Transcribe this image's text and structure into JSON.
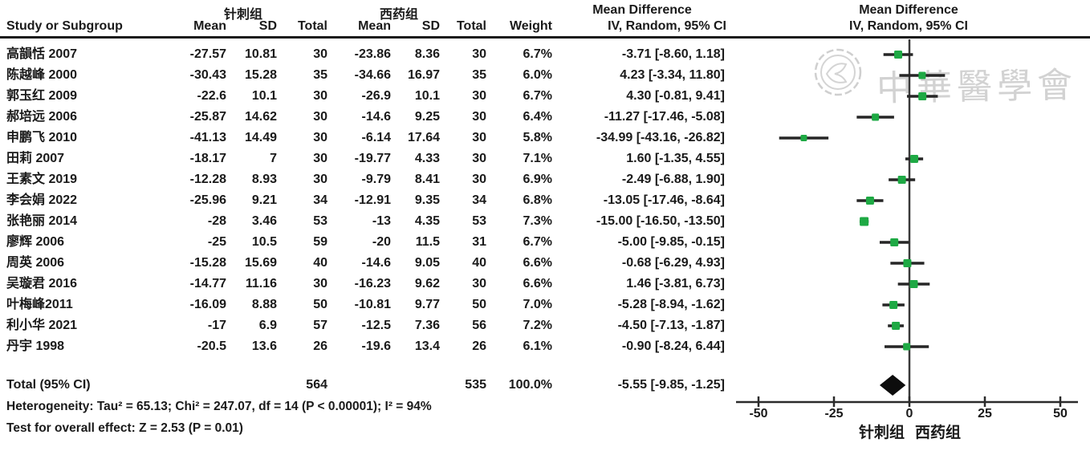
{
  "chart_data": {
    "type": "forest_plot",
    "effect_measure": "Mean Difference",
    "method": "IV, Random, 95% CI",
    "group1_label": "针刺组",
    "group2_label": "西药组",
    "columns": {
      "study": "Study or Subgroup",
      "mean": "Mean",
      "sd": "SD",
      "total": "Total",
      "weight": "Weight",
      "ci": "IV, Random, 95% CI"
    },
    "studies": [
      {
        "name": "高韻恬 2007",
        "mean1": "-27.57",
        "sd1": "10.81",
        "n1": "30",
        "mean2": "-23.86",
        "sd2": "8.36",
        "n2": "30",
        "weight": "6.7%",
        "md": -3.71,
        "lo": -8.6,
        "hi": 1.18,
        "ci_text": "-3.71 [-8.60, 1.18]"
      },
      {
        "name": "陈越峰 2000",
        "mean1": "-30.43",
        "sd1": "15.28",
        "n1": "35",
        "mean2": "-34.66",
        "sd2": "16.97",
        "n2": "35",
        "weight": "6.0%",
        "md": 4.23,
        "lo": -3.34,
        "hi": 11.8,
        "ci_text": "4.23 [-3.34, 11.80]"
      },
      {
        "name": "郭玉红 2009",
        "mean1": "-22.6",
        "sd1": "10.1",
        "n1": "30",
        "mean2": "-26.9",
        "sd2": "10.1",
        "n2": "30",
        "weight": "6.7%",
        "md": 4.3,
        "lo": -0.81,
        "hi": 9.41,
        "ci_text": "4.30 [-0.81, 9.41]"
      },
      {
        "name": "郝培远 2006",
        "mean1": "-25.87",
        "sd1": "14.62",
        "n1": "30",
        "mean2": "-14.6",
        "sd2": "9.25",
        "n2": "30",
        "weight": "6.4%",
        "md": -11.27,
        "lo": -17.46,
        "hi": -5.08,
        "ci_text": "-11.27 [-17.46, -5.08]"
      },
      {
        "name": "申鹏飞 2010",
        "mean1": "-41.13",
        "sd1": "14.49",
        "n1": "30",
        "mean2": "-6.14",
        "sd2": "17.64",
        "n2": "30",
        "weight": "5.8%",
        "md": -34.99,
        "lo": -43.16,
        "hi": -26.82,
        "ci_text": "-34.99 [-43.16, -26.82]"
      },
      {
        "name": "田莉 2007",
        "mean1": "-18.17",
        "sd1": "7",
        "n1": "30",
        "mean2": "-19.77",
        "sd2": "4.33",
        "n2": "30",
        "weight": "7.1%",
        "md": 1.6,
        "lo": -1.35,
        "hi": 4.55,
        "ci_text": "1.60 [-1.35, 4.55]"
      },
      {
        "name": "王素文 2019",
        "mean1": "-12.28",
        "sd1": "8.93",
        "n1": "30",
        "mean2": "-9.79",
        "sd2": "8.41",
        "n2": "30",
        "weight": "6.9%",
        "md": -2.49,
        "lo": -6.88,
        "hi": 1.9,
        "ci_text": "-2.49 [-6.88, 1.90]"
      },
      {
        "name": "李会娟 2022",
        "mean1": "-25.96",
        "sd1": "9.21",
        "n1": "34",
        "mean2": "-12.91",
        "sd2": "9.35",
        "n2": "34",
        "weight": "6.8%",
        "md": -13.05,
        "lo": -17.46,
        "hi": -8.64,
        "ci_text": "-13.05 [-17.46, -8.64]"
      },
      {
        "name": "张艳丽 2014",
        "mean1": "-28",
        "sd1": "3.46",
        "n1": "53",
        "mean2": "-13",
        "sd2": "4.35",
        "n2": "53",
        "weight": "7.3%",
        "md": -15.0,
        "lo": -16.5,
        "hi": -13.5,
        "ci_text": "-15.00 [-16.50, -13.50]"
      },
      {
        "name": "廖辉 2006",
        "mean1": "-25",
        "sd1": "10.5",
        "n1": "59",
        "mean2": "-20",
        "sd2": "11.5",
        "n2": "31",
        "weight": "6.7%",
        "md": -5.0,
        "lo": -9.85,
        "hi": -0.15,
        "ci_text": "-5.00 [-9.85, -0.15]"
      },
      {
        "name": "周英 2006",
        "mean1": "-15.28",
        "sd1": "15.69",
        "n1": "40",
        "mean2": "-14.6",
        "sd2": "9.05",
        "n2": "40",
        "weight": "6.6%",
        "md": -0.68,
        "lo": -6.29,
        "hi": 4.93,
        "ci_text": "-0.68 [-6.29, 4.93]"
      },
      {
        "name": "吴璇君 2016",
        "mean1": "-14.77",
        "sd1": "11.16",
        "n1": "30",
        "mean2": "-16.23",
        "sd2": "9.62",
        "n2": "30",
        "weight": "6.6%",
        "md": 1.46,
        "lo": -3.81,
        "hi": 6.73,
        "ci_text": "1.46 [-3.81, 6.73]"
      },
      {
        "name": "叶梅峰2011",
        "mean1": "-16.09",
        "sd1": "8.88",
        "n1": "50",
        "mean2": "-10.81",
        "sd2": "9.77",
        "n2": "50",
        "weight": "7.0%",
        "md": -5.28,
        "lo": -8.94,
        "hi": -1.62,
        "ci_text": "-5.28 [-8.94, -1.62]"
      },
      {
        "name": "利小华 2021",
        "mean1": "-17",
        "sd1": "6.9",
        "n1": "57",
        "mean2": "-12.5",
        "sd2": "7.36",
        "n2": "56",
        "weight": "7.2%",
        "md": -4.5,
        "lo": -7.13,
        "hi": -1.87,
        "ci_text": "-4.50 [-7.13, -1.87]"
      },
      {
        "name": "丹宇 1998",
        "mean1": "-20.5",
        "sd1": "13.6",
        "n1": "26",
        "mean2": "-19.6",
        "sd2": "13.4",
        "n2": "26",
        "weight": "6.1%",
        "md": -0.9,
        "lo": -8.24,
        "hi": 6.44,
        "ci_text": "-0.90 [-8.24, 6.44]"
      }
    ],
    "total": {
      "label": "Total (95% CI)",
      "n1": "564",
      "n2": "535",
      "weight": "100.0%",
      "md": -5.55,
      "lo": -9.85,
      "hi": -1.25,
      "ci_text": "-5.55 [-9.85, -1.25]"
    },
    "heterogeneity": "Heterogeneity: Tau² = 65.13; Chi² = 247.07, df = 14 (P < 0.00001); I² = 94%",
    "overall_effect": "Test for overall effect: Z = 2.53 (P = 0.01)",
    "axis": {
      "ticks": [
        -50,
        -25,
        0,
        25,
        50
      ],
      "xlim": [
        -57,
        57
      ],
      "left_label": "针刺组",
      "right_label": "西药组"
    },
    "marker_color": "#1ea944",
    "line_color": "#262626",
    "diamond_color": "#0d0d0d",
    "watermark": {
      "text": "中華醫學會",
      "color": "#d2d2d2"
    }
  }
}
